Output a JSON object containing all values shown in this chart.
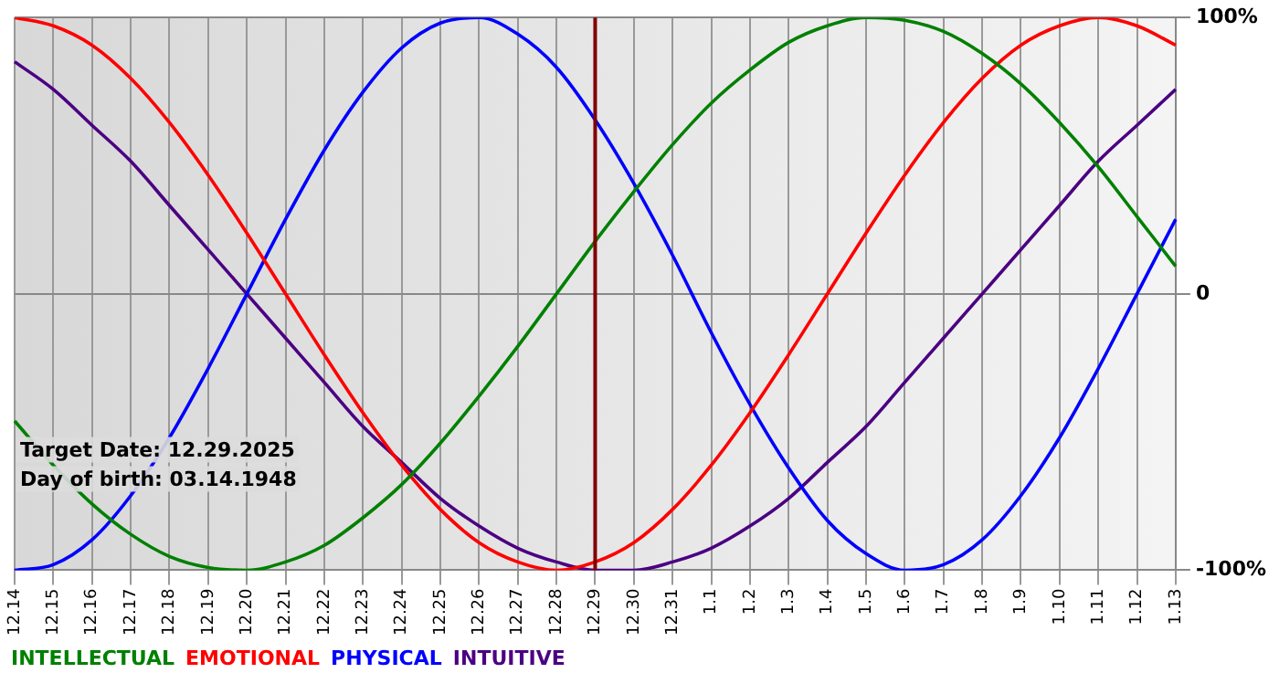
{
  "chart_data": {
    "type": "line",
    "categories": [
      "12.14",
      "12.15",
      "12.16",
      "12.17",
      "12.18",
      "12.19",
      "12.20",
      "12.21",
      "12.22",
      "12.23",
      "12.24",
      "12.25",
      "12.26",
      "12.27",
      "12.28",
      "12.29",
      "12.30",
      "12.31",
      "1.1",
      "1.2",
      "1.3",
      "1.4",
      "1.5",
      "1.6",
      "1.7",
      "1.8",
      "1.9",
      "1.10",
      "1.11",
      "1.12",
      "1.13"
    ],
    "series": [
      {
        "name": "INTELLECTUAL",
        "color": "#008000",
        "values": [
          -46,
          -62,
          -76,
          -87,
          -95,
          -99,
          -100,
          -97,
          -91,
          -81,
          -69,
          -54,
          -37,
          -19,
          0,
          19,
          37,
          54,
          69,
          81,
          91,
          97,
          100,
          99,
          95,
          87,
          76,
          62,
          46,
          28,
          10
        ]
      },
      {
        "name": "EMOTIONAL",
        "color": "#ff0000",
        "values": [
          100,
          97,
          90,
          78,
          62,
          43,
          22,
          0,
          -22,
          -43,
          -62,
          -78,
          -90,
          -97,
          -100,
          -97,
          -90,
          -78,
          -62,
          -43,
          -22,
          0,
          22,
          43,
          62,
          78,
          90,
          97,
          100,
          97,
          90
        ]
      },
      {
        "name": "PHYSICAL",
        "color": "#0000ff",
        "values": [
          -100,
          -98,
          -89,
          -73,
          -52,
          -27,
          0,
          27,
          52,
          73,
          89,
          98,
          100,
          94,
          82,
          63,
          40,
          14,
          -14,
          -40,
          -63,
          -82,
          -94,
          -100,
          -98,
          -89,
          -73,
          -52,
          -27,
          0,
          27
        ]
      },
      {
        "name": "INTUITIVE",
        "color": "#4b0082",
        "values": [
          84,
          74,
          61,
          48,
          32,
          16,
          0,
          -16,
          -32,
          -48,
          -61,
          -74,
          -84,
          -92,
          -97,
          -100,
          -100,
          -97,
          -92,
          -84,
          -74,
          -61,
          -48,
          -32,
          -16,
          0,
          16,
          32,
          48,
          61,
          74
        ]
      }
    ],
    "ylim": [
      -100,
      100
    ],
    "yticks": [
      {
        "value": -100,
        "label": "-100%"
      },
      {
        "value": 0,
        "label": "0"
      },
      {
        "value": 100,
        "label": "100%"
      }
    ],
    "grid": true,
    "legend": "bottom",
    "marker": "none",
    "line_style": "solid",
    "ref_lines": [
      {
        "axis": "x",
        "value": "12.29",
        "color": "#800000"
      }
    ],
    "annotations": [
      "Target Date: 12.29.2025",
      "Day of birth: 03.14.1948"
    ]
  }
}
